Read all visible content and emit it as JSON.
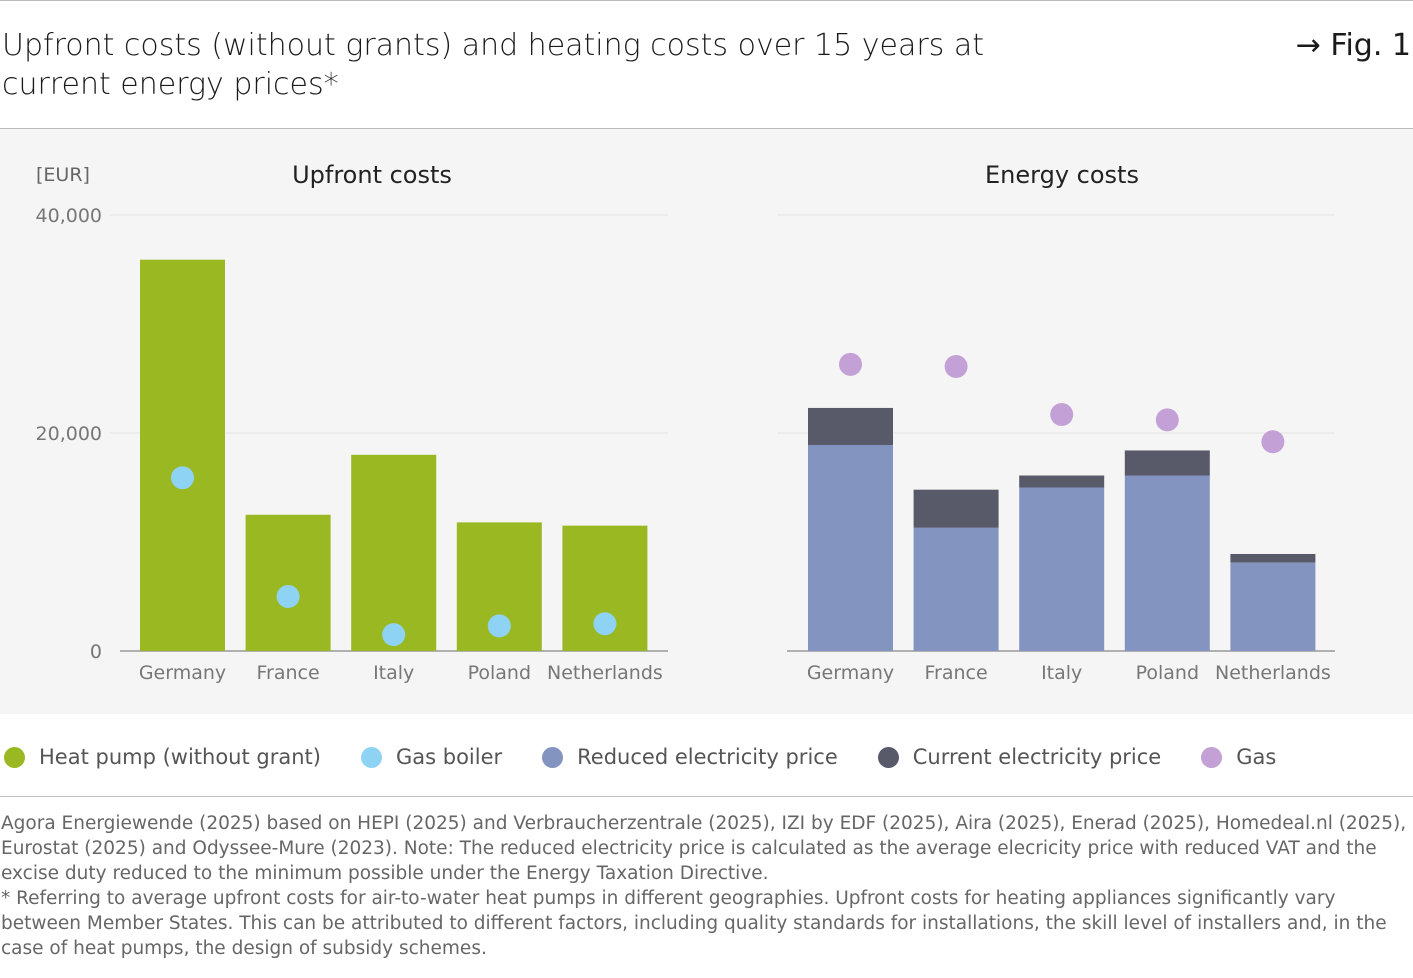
{
  "title": "Upfront costs (without grants) and heating costs over 15 years at current energy prices*",
  "fig_label": "→ Fig. 1",
  "chart_data": [
    {
      "type": "bar",
      "title": "Upfront costs",
      "ylabel": "[EUR]",
      "ylim": [
        0,
        40000
      ],
      "yticks": [
        "0",
        "20,000",
        "40,000"
      ],
      "grid": true,
      "categories": [
        "Germany",
        "France",
        "Italy",
        "Poland",
        "Netherlands"
      ],
      "series": [
        {
          "name": "Heat pump (without grant)",
          "kind": "bar",
          "color": "#9ab822",
          "values": [
            35900,
            12500,
            18000,
            11800,
            11500
          ]
        },
        {
          "name": "Gas boiler",
          "kind": "dot",
          "color": "#8fd3f4",
          "values": [
            15900,
            5000,
            1500,
            2300,
            2500
          ]
        }
      ]
    },
    {
      "type": "bar",
      "title": "Energy costs",
      "ylim": [
        0,
        40000
      ],
      "grid": true,
      "stacked": true,
      "categories": [
        "Germany",
        "France",
        "Italy",
        "Poland",
        "Netherlands"
      ],
      "series": [
        {
          "name": "Reduced electricity price",
          "kind": "bar",
          "color": "#8494c0",
          "values": [
            18900,
            11300,
            15000,
            16100,
            8100
          ]
        },
        {
          "name": "Current electricity price",
          "kind": "bar-total",
          "color": "#585a6a",
          "values": [
            22300,
            14800,
            16100,
            18400,
            8900
          ]
        },
        {
          "name": "Gas",
          "kind": "dot",
          "color": "#c3a0d6",
          "values": [
            26300,
            26100,
            21700,
            21200,
            19200
          ]
        }
      ]
    }
  ],
  "legend": [
    {
      "label": "Heat pump (without grant)",
      "color": "#9ab822"
    },
    {
      "label": "Gas boiler",
      "color": "#8fd3f4"
    },
    {
      "label": "Reduced electricity price",
      "color": "#8494c0"
    },
    {
      "label": "Current electricity price",
      "color": "#585a6a"
    },
    {
      "label": "Gas",
      "color": "#c3a0d6"
    }
  ],
  "source": {
    "line1": "Agora Energiewende (2025) based on HEPI (2025) and Verbraucherzentrale (2025), IZI by EDF (2025), Aira (2025), Enerad (2025), Homedeal.nl (2025), Eurostat (2025) and Odyssee-Mure (2023). Note: The reduced electricity price is calculated as the average elecricity price with reduced VAT and the excise duty reduced to the minimum possible under the Energy Taxation Directive.",
    "line2": "* Referring to average upfront costs for air-to-water heat pumps in different geographies. Upfront costs for heating appliances significantly vary between Member States. This can be attributed to different factors, including quality standards for installations, the skill level of installers and, in the case of heat pumps, the design of subsidy schemes."
  }
}
